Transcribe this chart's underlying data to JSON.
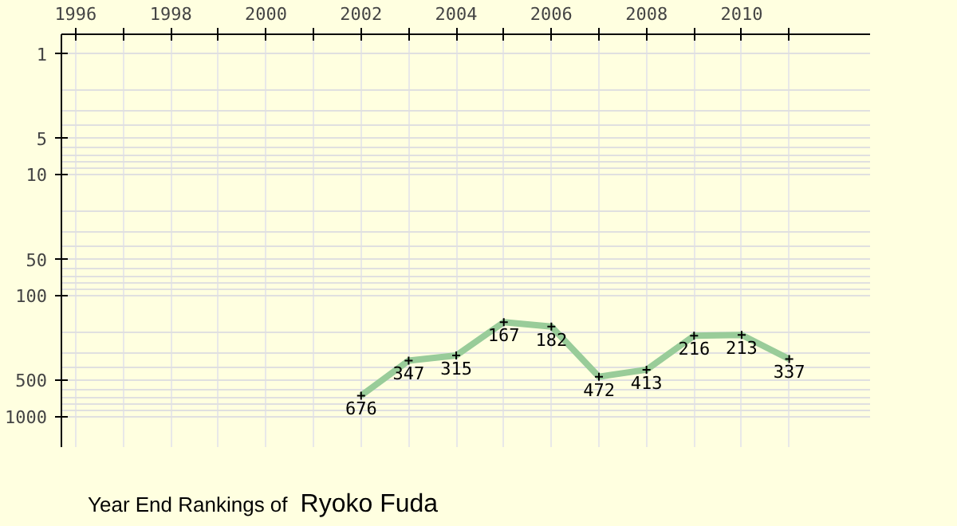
{
  "chart_data": {
    "type": "line",
    "title": "Year End Rankings of",
    "subtitle": "Ryoko Fuda",
    "x": [
      2002,
      2003,
      2004,
      2005,
      2006,
      2007,
      2008,
      2009,
      2010,
      2011
    ],
    "series": [
      {
        "color": "#99cc99",
        "values": [
          676,
          347,
          315,
          167,
          182,
          472,
          413,
          216,
          213,
          337
        ]
      }
    ],
    "xlim": [
      1995.7,
      2012.7
    ],
    "xticks": [
      1996,
      {
        "value": 1997,
        "label": null
      },
      1998,
      {
        "value": 1999,
        "label": null
      },
      2000,
      {
        "value": 2001,
        "label": null
      },
      2002,
      {
        "value": 2003,
        "label": null
      },
      2004,
      {
        "value": 2005,
        "label": null
      },
      2006,
      {
        "value": 2007,
        "label": null
      },
      2008,
      {
        "value": 2009,
        "label": null
      },
      2010,
      {
        "value": 2011,
        "label": null
      }
    ],
    "ylim": [
      1800,
      0.7
    ],
    "yticks": [
      1,
      5,
      10,
      50,
      100,
      500,
      1000
    ],
    "log": "y",
    "grid": true,
    "marker": "cross",
    "line_style": "solid",
    "data_labels": true
  }
}
